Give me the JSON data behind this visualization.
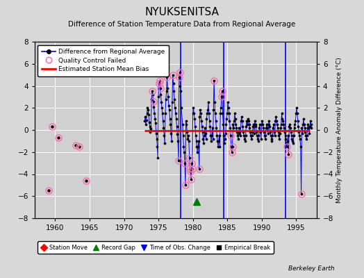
{
  "title": "NYUKSENITSA",
  "subtitle": "Difference of Station Temperature Data from Regional Average",
  "ylabel_right": "Monthly Temperature Anomaly Difference (°C)",
  "xlim": [
    1957,
    1998
  ],
  "ylim": [
    -8,
    8
  ],
  "yticks": [
    -8,
    -6,
    -4,
    -2,
    0,
    2,
    4,
    6,
    8
  ],
  "xticks": [
    1960,
    1965,
    1970,
    1975,
    1980,
    1985,
    1990,
    1995
  ],
  "bg_color": "#d8d8d8",
  "plot_bg_color": "#d0d0d0",
  "grid_color": "white",
  "bias_line_color": "red",
  "bias_value": -0.05,
  "bias_start": 1973,
  "bias_end": 1997,
  "line_color": "blue",
  "marker_color": "black",
  "qc_color": "#ff69b4",
  "vline_color": "blue",
  "vlines": [
    1978.25,
    1984.5,
    1993.5
  ],
  "record_gap_x": 1980.5,
  "record_gap_y": -6.5,
  "isolated_points": [
    [
      1959.5,
      0.3
    ],
    [
      1960.5,
      -0.7
    ],
    [
      1963.0,
      -1.4
    ],
    [
      1963.5,
      -1.5
    ],
    [
      1964.5,
      -4.6
    ],
    [
      1959.0,
      -5.5
    ]
  ],
  "berkeley_earth_text": "Berkeley Earth",
  "main_data": [
    [
      1973.0,
      0.8
    ],
    [
      1973.08,
      1.2
    ],
    [
      1973.17,
      0.5
    ],
    [
      1973.25,
      0.9
    ],
    [
      1973.33,
      1.5
    ],
    [
      1973.42,
      2.0
    ],
    [
      1973.5,
      1.8
    ],
    [
      1973.58,
      1.4
    ],
    [
      1973.67,
      0.7
    ],
    [
      1973.75,
      0.3
    ],
    [
      1973.83,
      -0.2
    ],
    [
      1973.92,
      0.1
    ],
    [
      1974.0,
      2.8
    ],
    [
      1974.08,
      3.5
    ],
    [
      1974.17,
      3.2
    ],
    [
      1974.25,
      2.6
    ],
    [
      1974.33,
      2.1
    ],
    [
      1974.42,
      1.5
    ],
    [
      1974.5,
      1.0
    ],
    [
      1974.58,
      0.6
    ],
    [
      1974.67,
      -0.3
    ],
    [
      1974.75,
      -0.8
    ],
    [
      1974.83,
      -1.5
    ],
    [
      1974.92,
      -2.5
    ],
    [
      1975.0,
      3.0
    ],
    [
      1975.08,
      4.2
    ],
    [
      1975.17,
      4.5
    ],
    [
      1975.25,
      3.8
    ],
    [
      1975.33,
      3.2
    ],
    [
      1975.42,
      2.5
    ],
    [
      1975.5,
      2.0
    ],
    [
      1975.58,
      1.5
    ],
    [
      1975.67,
      0.8
    ],
    [
      1975.75,
      0.2
    ],
    [
      1975.83,
      -0.5
    ],
    [
      1975.92,
      -1.2
    ],
    [
      1976.0,
      1.5
    ],
    [
      1976.08,
      2.8
    ],
    [
      1976.17,
      3.5
    ],
    [
      1976.25,
      4.8
    ],
    [
      1976.33,
      3.8
    ],
    [
      1976.42,
      3.0
    ],
    [
      1976.5,
      2.2
    ],
    [
      1976.58,
      1.8
    ],
    [
      1976.67,
      1.0
    ],
    [
      1976.75,
      0.5
    ],
    [
      1976.83,
      -0.3
    ],
    [
      1976.92,
      -1.0
    ],
    [
      1977.0,
      2.5
    ],
    [
      1977.08,
      5.0
    ],
    [
      1977.17,
      4.2
    ],
    [
      1977.25,
      3.5
    ],
    [
      1977.33,
      2.8
    ],
    [
      1977.42,
      2.0
    ],
    [
      1977.5,
      1.5
    ],
    [
      1977.58,
      1.0
    ],
    [
      1977.67,
      0.3
    ],
    [
      1977.75,
      -0.4
    ],
    [
      1977.83,
      -1.0
    ],
    [
      1977.92,
      -2.8
    ],
    [
      1978.0,
      4.8
    ],
    [
      1978.08,
      5.2
    ],
    [
      1978.17,
      4.0
    ],
    [
      1978.25,
      3.5
    ],
    [
      1978.33,
      2.0
    ],
    [
      1978.5,
      0.5
    ],
    [
      1978.58,
      -0.5
    ],
    [
      1978.67,
      -1.5
    ],
    [
      1978.75,
      -2.0
    ],
    [
      1978.83,
      -3.0
    ],
    [
      1978.92,
      -5.0
    ],
    [
      1979.0,
      0.8
    ],
    [
      1979.08,
      0.5
    ],
    [
      1979.17,
      -0.2
    ],
    [
      1979.25,
      -0.8
    ],
    [
      1979.33,
      -0.5
    ],
    [
      1979.42,
      -1.0
    ],
    [
      1979.5,
      -2.5
    ],
    [
      1979.58,
      -3.5
    ],
    [
      1979.67,
      -3.8
    ],
    [
      1979.75,
      -4.5
    ],
    [
      1979.83,
      -3.0
    ],
    [
      1979.92,
      -3.5
    ],
    [
      1980.0,
      1.5
    ],
    [
      1980.08,
      2.0
    ],
    [
      1980.17,
      1.5
    ],
    [
      1980.25,
      1.0
    ],
    [
      1980.33,
      0.3
    ],
    [
      1980.42,
      -0.5
    ],
    [
      1980.5,
      -1.0
    ],
    [
      1980.58,
      -1.5
    ],
    [
      1980.67,
      -2.0
    ],
    [
      1980.75,
      -1.5
    ],
    [
      1980.83,
      -1.0
    ],
    [
      1980.92,
      -3.5
    ],
    [
      1981.0,
      1.2
    ],
    [
      1981.08,
      1.8
    ],
    [
      1981.17,
      1.5
    ],
    [
      1981.25,
      0.8
    ],
    [
      1981.33,
      0.3
    ],
    [
      1981.42,
      -0.2
    ],
    [
      1981.5,
      -0.8
    ],
    [
      1981.58,
      -1.2
    ],
    [
      1981.67,
      -0.5
    ],
    [
      1981.75,
      0.2
    ],
    [
      1981.83,
      -0.3
    ],
    [
      1981.92,
      -0.8
    ],
    [
      1982.0,
      1.0
    ],
    [
      1982.08,
      1.5
    ],
    [
      1982.17,
      1.8
    ],
    [
      1982.25,
      2.5
    ],
    [
      1982.33,
      1.5
    ],
    [
      1982.42,
      0.8
    ],
    [
      1982.5,
      0.3
    ],
    [
      1982.58,
      -0.5
    ],
    [
      1982.67,
      -1.0
    ],
    [
      1982.75,
      -0.5
    ],
    [
      1982.83,
      0.2
    ],
    [
      1982.92,
      -0.8
    ],
    [
      1983.0,
      1.8
    ],
    [
      1983.08,
      4.5
    ],
    [
      1983.17,
      2.5
    ],
    [
      1983.25,
      1.5
    ],
    [
      1983.33,
      0.8
    ],
    [
      1983.42,
      0.2
    ],
    [
      1983.5,
      -0.5
    ],
    [
      1983.58,
      -1.0
    ],
    [
      1983.67,
      -1.5
    ],
    [
      1983.75,
      -1.0
    ],
    [
      1983.83,
      -0.5
    ],
    [
      1983.92,
      -1.5
    ],
    [
      1984.0,
      1.5
    ],
    [
      1984.08,
      2.0
    ],
    [
      1984.17,
      3.0
    ],
    [
      1984.25,
      3.5
    ],
    [
      1984.33,
      1.5
    ],
    [
      1984.42,
      0.5
    ],
    [
      1984.5,
      -0.5
    ],
    [
      1984.58,
      -1.2
    ],
    [
      1984.67,
      -0.8
    ],
    [
      1984.75,
      -0.3
    ],
    [
      1984.83,
      0.5
    ],
    [
      1984.92,
      1.0
    ],
    [
      1985.0,
      1.5
    ],
    [
      1985.08,
      2.5
    ],
    [
      1985.17,
      2.0
    ],
    [
      1985.25,
      1.5
    ],
    [
      1985.33,
      0.8
    ],
    [
      1985.42,
      0.2
    ],
    [
      1985.5,
      -0.5
    ],
    [
      1985.58,
      -1.5
    ],
    [
      1985.67,
      -2.0
    ],
    [
      1985.75,
      -1.5
    ],
    [
      1985.83,
      0.5
    ],
    [
      1985.92,
      0.2
    ],
    [
      1986.0,
      0.8
    ],
    [
      1986.08,
      1.5
    ],
    [
      1986.17,
      1.0
    ],
    [
      1986.25,
      0.5
    ],
    [
      1986.33,
      0.2
    ],
    [
      1986.42,
      -0.2
    ],
    [
      1986.5,
      -0.5
    ],
    [
      1986.58,
      -0.8
    ],
    [
      1986.67,
      -0.3
    ],
    [
      1986.75,
      0.2
    ],
    [
      1986.83,
      -0.2
    ],
    [
      1986.92,
      -0.5
    ],
    [
      1987.0,
      0.8
    ],
    [
      1987.08,
      1.2
    ],
    [
      1987.17,
      0.8
    ],
    [
      1987.25,
      0.3
    ],
    [
      1987.33,
      -0.2
    ],
    [
      1987.42,
      -0.5
    ],
    [
      1987.5,
      -0.8
    ],
    [
      1987.58,
      -1.0
    ],
    [
      1987.67,
      -0.5
    ],
    [
      1987.75,
      0.3
    ],
    [
      1987.83,
      0.8
    ],
    [
      1987.92,
      0.5
    ],
    [
      1988.0,
      1.0
    ],
    [
      1988.08,
      0.8
    ],
    [
      1988.17,
      0.5
    ],
    [
      1988.25,
      0.2
    ],
    [
      1988.33,
      -0.2
    ],
    [
      1988.42,
      -0.5
    ],
    [
      1988.5,
      -0.8
    ],
    [
      1988.58,
      -0.5
    ],
    [
      1988.67,
      -0.2
    ],
    [
      1988.75,
      0.3
    ],
    [
      1988.83,
      0.5
    ],
    [
      1988.92,
      -0.3
    ],
    [
      1989.0,
      0.8
    ],
    [
      1989.08,
      0.5
    ],
    [
      1989.17,
      0.3
    ],
    [
      1989.25,
      -0.2
    ],
    [
      1989.33,
      -0.5
    ],
    [
      1989.42,
      -0.8
    ],
    [
      1989.5,
      -1.0
    ],
    [
      1989.58,
      -0.5
    ],
    [
      1989.67,
      0.2
    ],
    [
      1989.75,
      0.5
    ],
    [
      1989.83,
      -0.2
    ],
    [
      1989.92,
      -0.8
    ],
    [
      1990.0,
      0.5
    ],
    [
      1990.08,
      0.8
    ],
    [
      1990.17,
      0.5
    ],
    [
      1990.25,
      0.2
    ],
    [
      1990.33,
      -0.2
    ],
    [
      1990.42,
      -0.5
    ],
    [
      1990.5,
      -0.8
    ],
    [
      1990.58,
      -0.5
    ],
    [
      1990.67,
      0.2
    ],
    [
      1990.75,
      0.5
    ],
    [
      1990.83,
      0.2
    ],
    [
      1990.92,
      -0.3
    ],
    [
      1991.0,
      0.5
    ],
    [
      1991.08,
      0.8
    ],
    [
      1991.17,
      0.3
    ],
    [
      1991.25,
      -0.2
    ],
    [
      1991.33,
      -0.5
    ],
    [
      1991.42,
      -0.8
    ],
    [
      1991.5,
      -1.0
    ],
    [
      1991.58,
      -0.5
    ],
    [
      1991.67,
      0.2
    ],
    [
      1991.75,
      0.5
    ],
    [
      1991.83,
      -0.2
    ],
    [
      1991.92,
      -0.5
    ],
    [
      1992.0,
      0.8
    ],
    [
      1992.08,
      1.2
    ],
    [
      1992.17,
      0.8
    ],
    [
      1992.25,
      0.5
    ],
    [
      1992.33,
      0.2
    ],
    [
      1992.42,
      -0.2
    ],
    [
      1992.5,
      -0.5
    ],
    [
      1992.58,
      -0.8
    ],
    [
      1992.67,
      -0.3
    ],
    [
      1992.75,
      0.2
    ],
    [
      1992.83,
      0.5
    ],
    [
      1992.92,
      1.5
    ],
    [
      1993.0,
      1.0
    ],
    [
      1993.08,
      0.8
    ],
    [
      1993.17,
      0.5
    ],
    [
      1993.25,
      0.2
    ],
    [
      1993.33,
      -0.2
    ],
    [
      1993.42,
      -0.5
    ],
    [
      1993.5,
      -0.8
    ],
    [
      1993.58,
      -1.2
    ],
    [
      1993.67,
      -1.5
    ],
    [
      1993.75,
      -1.0
    ],
    [
      1993.83,
      -0.5
    ],
    [
      1993.92,
      -2.2
    ],
    [
      1994.0,
      0.3
    ],
    [
      1994.08,
      0.5
    ],
    [
      1994.17,
      0.2
    ],
    [
      1994.25,
      -0.2
    ],
    [
      1994.33,
      -0.5
    ],
    [
      1994.42,
      -0.8
    ],
    [
      1994.5,
      -1.0
    ],
    [
      1994.58,
      -1.2
    ],
    [
      1994.67,
      -0.5
    ],
    [
      1994.75,
      0.2
    ],
    [
      1994.83,
      0.5
    ],
    [
      1994.92,
      0.8
    ],
    [
      1995.0,
      1.5
    ],
    [
      1995.08,
      2.0
    ],
    [
      1995.17,
      1.5
    ],
    [
      1995.25,
      0.8
    ],
    [
      1995.33,
      0.3
    ],
    [
      1995.42,
      -0.2
    ],
    [
      1995.5,
      -0.5
    ],
    [
      1995.58,
      -0.8
    ],
    [
      1995.67,
      -1.5
    ],
    [
      1995.75,
      -5.8
    ],
    [
      1995.83,
      0.2
    ],
    [
      1995.92,
      -0.3
    ],
    [
      1996.0,
      0.5
    ],
    [
      1996.08,
      1.0
    ],
    [
      1996.17,
      0.5
    ],
    [
      1996.25,
      0.2
    ],
    [
      1996.33,
      -0.2
    ],
    [
      1996.42,
      -0.5
    ],
    [
      1996.5,
      -0.8
    ],
    [
      1996.58,
      -0.5
    ],
    [
      1996.67,
      0.2
    ],
    [
      1996.75,
      0.5
    ],
    [
      1996.83,
      0.2
    ],
    [
      1996.92,
      -0.3
    ],
    [
      1997.0,
      0.3
    ],
    [
      1997.08,
      0.8
    ],
    [
      1997.17,
      0.5
    ],
    [
      1997.25,
      0.2
    ]
  ],
  "qc_points": [
    [
      1959.5,
      0.3
    ],
    [
      1960.5,
      -0.7
    ],
    [
      1963.0,
      -1.4
    ],
    [
      1963.5,
      -1.5
    ],
    [
      1964.5,
      -4.6
    ],
    [
      1959.0,
      -5.5
    ],
    [
      1974.25,
      2.6
    ],
    [
      1974.08,
      3.5
    ],
    [
      1975.25,
      3.8
    ],
    [
      1975.08,
      4.2
    ],
    [
      1975.17,
      4.5
    ],
    [
      1976.25,
      4.8
    ],
    [
      1977.08,
      5.0
    ],
    [
      1977.92,
      -2.8
    ],
    [
      1978.0,
      4.8
    ],
    [
      1978.08,
      5.2
    ],
    [
      1978.83,
      -3.0
    ],
    [
      1978.92,
      -5.0
    ],
    [
      1979.5,
      -2.5
    ],
    [
      1979.58,
      -3.5
    ],
    [
      1979.67,
      -3.8
    ],
    [
      1979.75,
      -4.5
    ],
    [
      1979.83,
      -3.0
    ],
    [
      1979.92,
      -3.5
    ],
    [
      1980.92,
      -3.5
    ],
    [
      1983.08,
      4.5
    ],
    [
      1984.17,
      3.0
    ],
    [
      1984.25,
      3.5
    ],
    [
      1985.5,
      -0.5
    ],
    [
      1985.67,
      -2.0
    ],
    [
      1985.75,
      -1.5
    ],
    [
      1993.67,
      -1.5
    ],
    [
      1993.92,
      -2.2
    ],
    [
      1995.75,
      -5.8
    ]
  ]
}
